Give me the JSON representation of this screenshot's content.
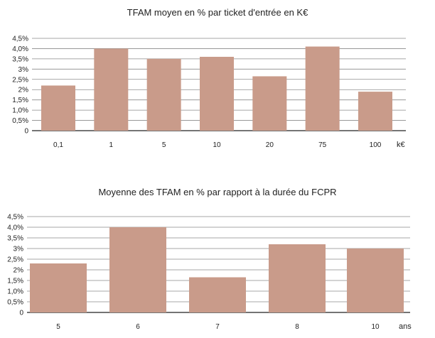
{
  "bar_color": "#c99b8a",
  "chart_data": [
    {
      "type": "bar",
      "title": "TFAM moyen en % par ticket d'entrée en K€",
      "categories": [
        "0,1",
        "1",
        "5",
        "10",
        "20",
        "75",
        "100"
      ],
      "values": [
        2.2,
        4.0,
        3.5,
        3.6,
        2.65,
        4.1,
        1.9
      ],
      "x_unit": "k€",
      "ylim": [
        0,
        4.5
      ],
      "y_ticks": [
        "0",
        "0,5%",
        "1,0%",
        "1,5%",
        "2%",
        "2,5%",
        "3%",
        "3,5%",
        "4,0%",
        "4,5%"
      ],
      "grid": true
    },
    {
      "type": "bar",
      "title": "Moyenne des TFAM en % par rapport à la durée du FCPR",
      "categories": [
        "5",
        "6",
        "7",
        "8",
        "10"
      ],
      "values": [
        2.3,
        4.0,
        1.65,
        3.2,
        3.0
      ],
      "x_unit": "ans",
      "ylim": [
        0,
        4.5
      ],
      "y_ticks": [
        "0",
        "0,5%",
        "1,0%",
        "1,5%",
        "2%",
        "2,5%",
        "3%",
        "3,5%",
        "4,0%",
        "4,5%"
      ],
      "grid": true
    }
  ]
}
